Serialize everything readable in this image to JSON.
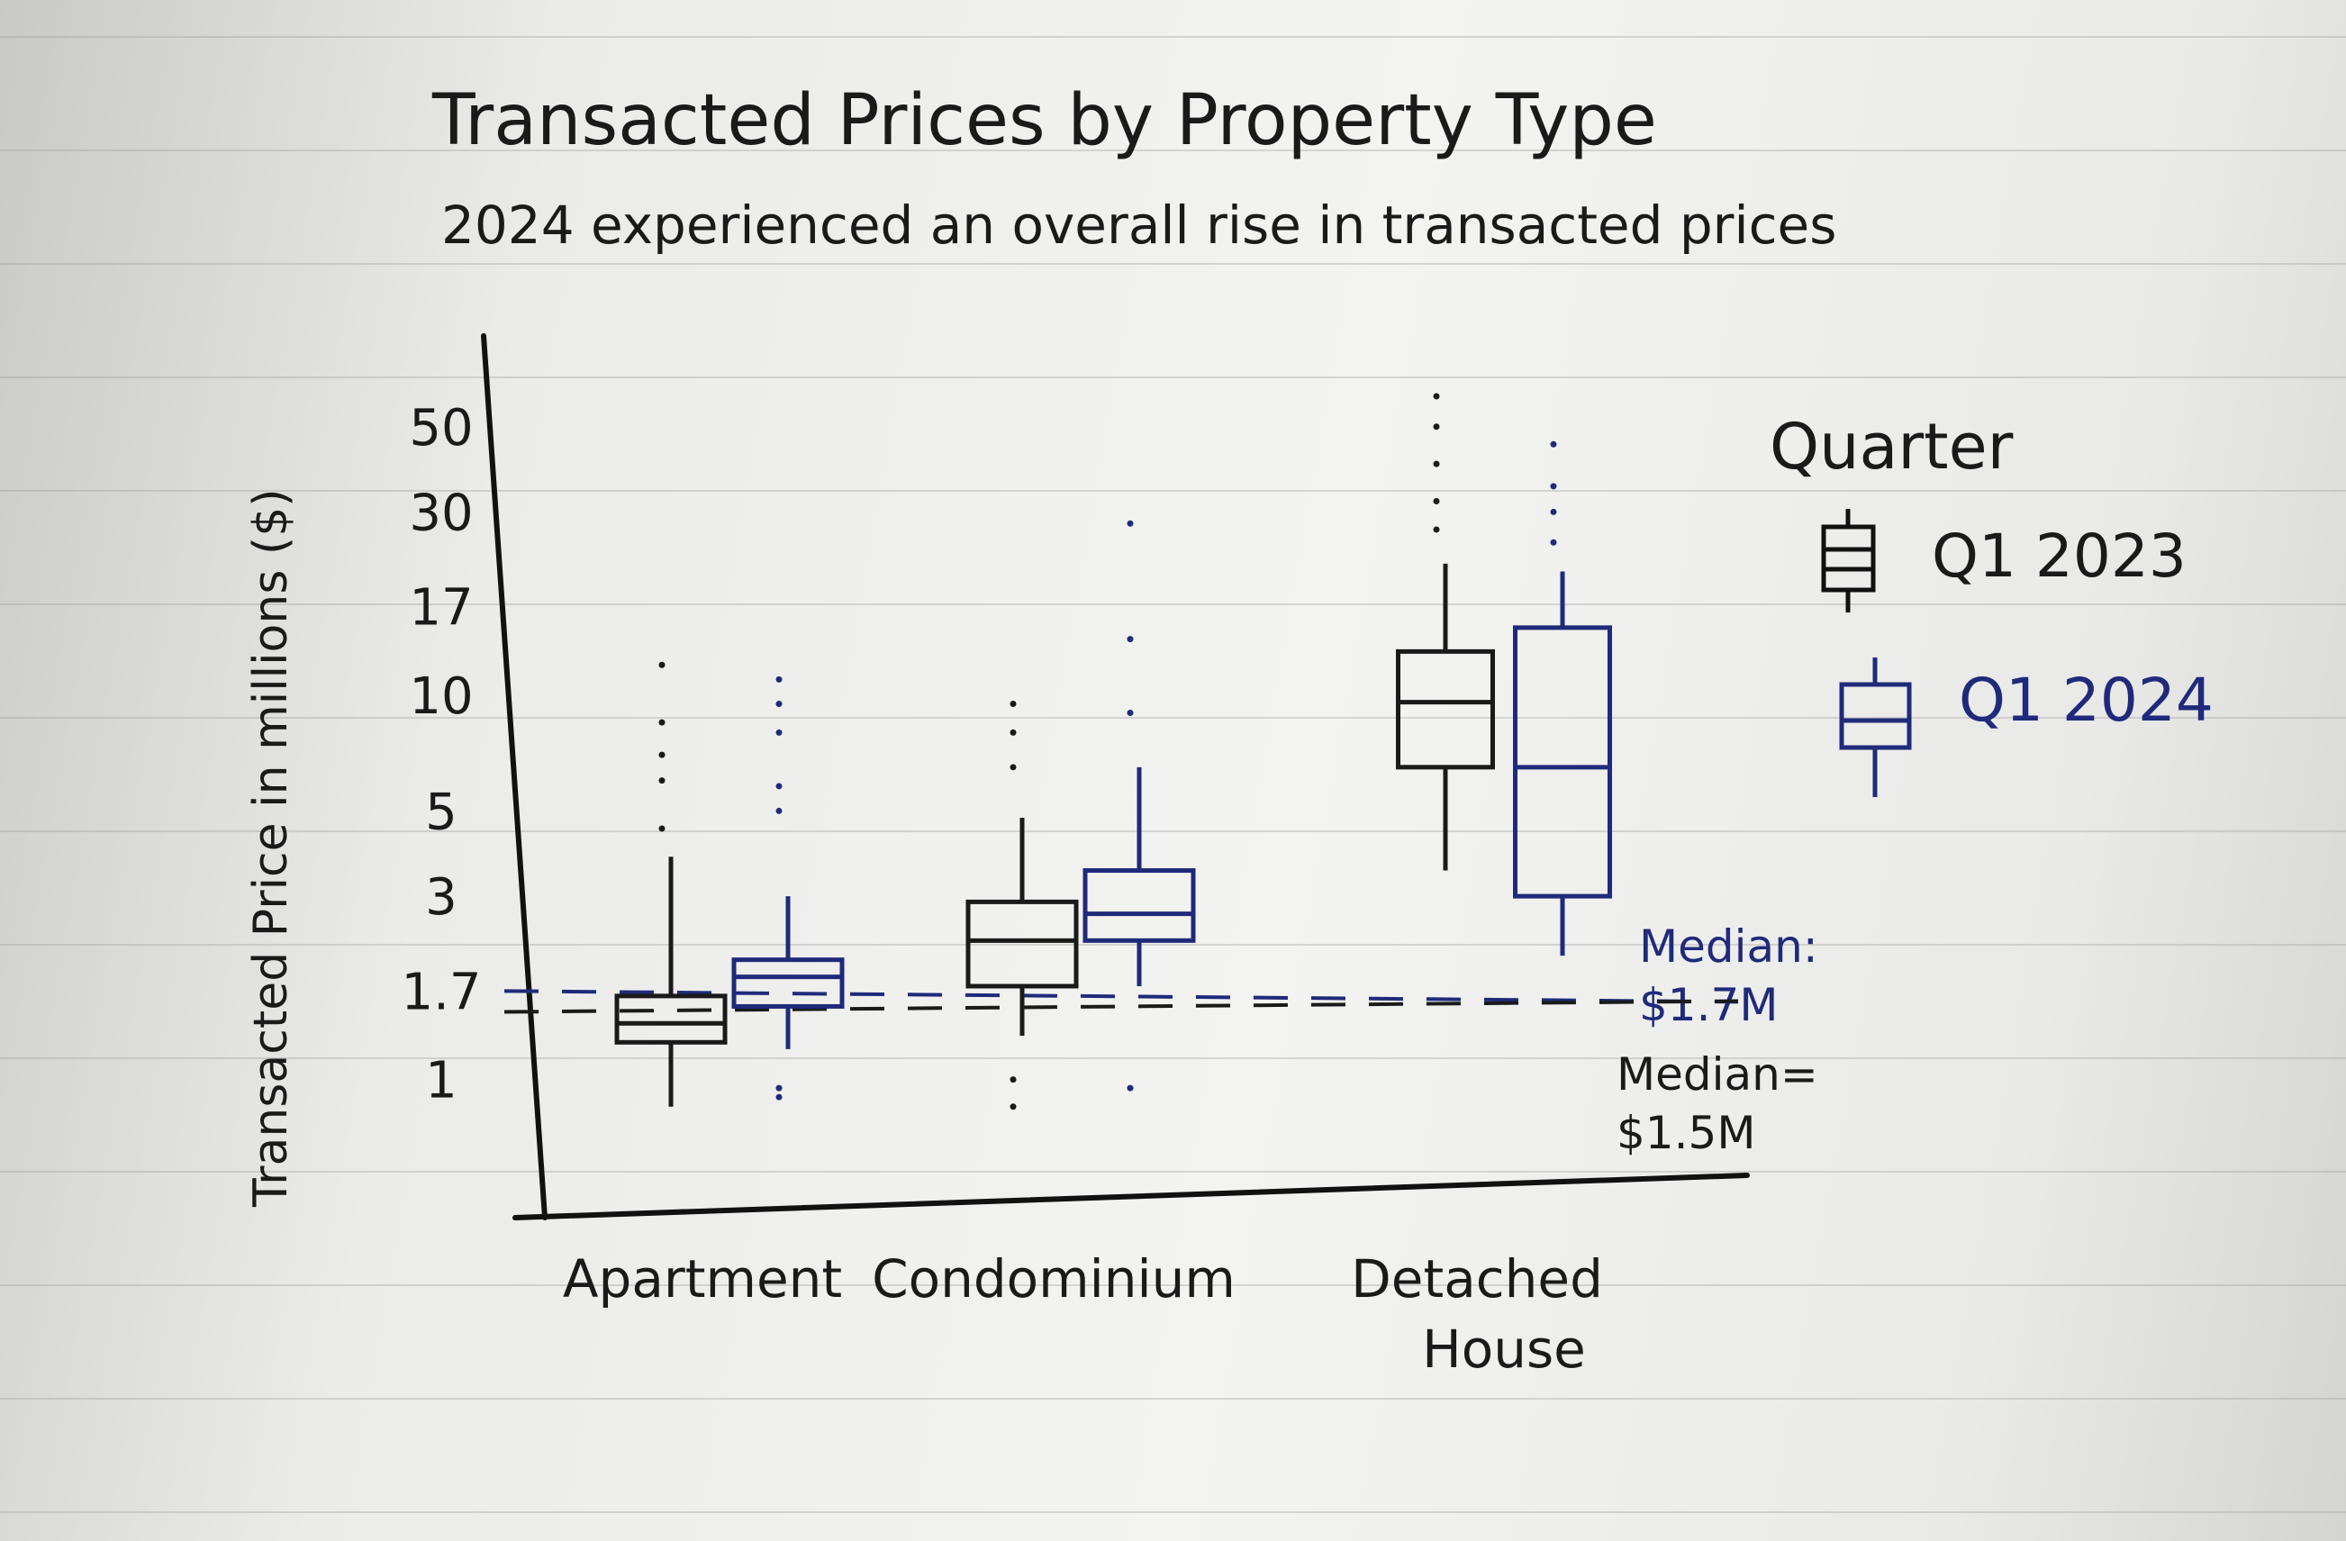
{
  "chart_data": {
    "type": "box",
    "title": "Transacted Prices by Property Type",
    "subtitle": "2024 experienced an overall rise in transacted prices",
    "ylabel": "Transacted Price in millions ($)",
    "xlabel": "",
    "ytick_labels": [
      "1",
      "1.7",
      "3",
      "5",
      "10",
      "17",
      "30",
      "50"
    ],
    "yscale": "log",
    "ylim": [
      0.8,
      60
    ],
    "categories": [
      "Apartment",
      "Condominium",
      "Detached House"
    ],
    "category_label_lines": [
      [
        "Apartment"
      ],
      [
        "Condominium"
      ],
      [
        "Detached",
        "House"
      ]
    ],
    "legend": {
      "title": "Quarter",
      "position": "right",
      "entries": [
        {
          "name": "Q1 2023",
          "color": "#1a1a1a"
        },
        {
          "name": "Q1 2024",
          "color": "#1f2a7a"
        }
      ]
    },
    "series": [
      {
        "name": "Q1 2023",
        "color": "#1a1a1a",
        "boxes": [
          {
            "whisker_low": 0.85,
            "q1": 1.25,
            "median": 1.4,
            "q3": 1.65,
            "whisker_high": 3.8,
            "outliers": [
              4.5,
              6,
              7,
              8.5,
              12
            ]
          },
          {
            "whisker_low": 1.3,
            "q1": 1.75,
            "median": 2.3,
            "q3": 2.9,
            "whisker_high": 4.8,
            "outliers": [
              1.0,
              0.85,
              6.5,
              8,
              9.5
            ]
          },
          {
            "whisker_low": 3.5,
            "q1": 6.5,
            "median": 9.6,
            "q3": 13,
            "whisker_high": 22,
            "outliers": [
              27,
              32,
              40,
              50,
              60
            ]
          }
        ]
      },
      {
        "name": "Q1 2024",
        "color": "#1f2a7a",
        "boxes": [
          {
            "whisker_low": 1.2,
            "q1": 1.55,
            "median": 1.85,
            "q3": 2.05,
            "whisker_high": 3.0,
            "outliers": [
              0.95,
              0.9,
              5,
              5.8,
              8,
              9.5,
              11
            ]
          },
          {
            "whisker_low": 1.75,
            "q1": 2.3,
            "median": 2.7,
            "q3": 3.5,
            "whisker_high": 6.5,
            "outliers": [
              0.95,
              9,
              14,
              28
            ]
          },
          {
            "whisker_low": 2.1,
            "q1": 3.0,
            "median": 6.5,
            "q3": 15,
            "whisker_high": 21,
            "outliers": [
              25,
              30,
              35,
              45
            ]
          }
        ]
      }
    ],
    "reference_lines": [
      {
        "value": 1.7,
        "label_lines": [
          "Median:",
          "$1.7M"
        ],
        "color": "#1f2a7a"
      },
      {
        "value": 1.5,
        "label_lines": [
          "Median=",
          "$1.5M"
        ],
        "color": "#1a1a1a"
      }
    ],
    "grid": false
  }
}
